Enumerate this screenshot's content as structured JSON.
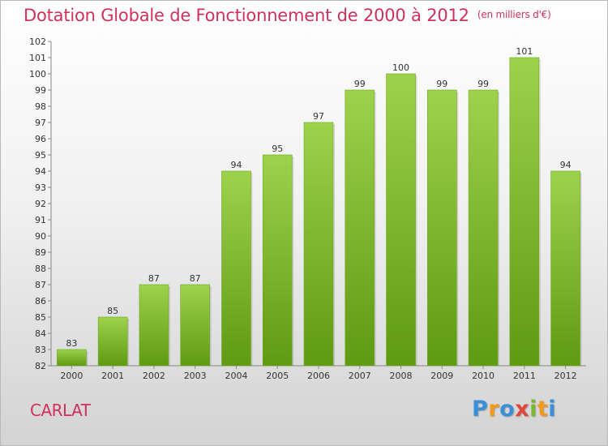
{
  "header": {
    "title": "Dotation Globale de Fonctionnement de 2000 à 2012",
    "unit_note": "(en milliers d'€)"
  },
  "footer": {
    "place": "CARLAT",
    "logo_text": "Proxiti"
  },
  "colors": {
    "title": "#d0305a",
    "bar_light": "#9ed24c",
    "bar_dark": "#5e9a12",
    "axis": "#888888",
    "grid": "#cccccc"
  },
  "chart_data": {
    "type": "bar",
    "title": "Dotation Globale de Fonctionnement de 2000 à 2012",
    "subtitle": "(en milliers d'€)",
    "categories": [
      "2000",
      "2001",
      "2002",
      "2003",
      "2004",
      "2005",
      "2006",
      "2007",
      "2008",
      "2009",
      "2010",
      "2011",
      "2012"
    ],
    "values": [
      83,
      85,
      87,
      87,
      94,
      95,
      97,
      99,
      100,
      99,
      99,
      101,
      94
    ],
    "ylim": [
      82,
      102
    ],
    "yticks": [
      82,
      83,
      84,
      85,
      86,
      87,
      88,
      89,
      90,
      91,
      92,
      93,
      94,
      95,
      96,
      97,
      98,
      99,
      100,
      101,
      102
    ],
    "xlabel": "",
    "ylabel": "",
    "grid": false,
    "data_labels": true
  }
}
